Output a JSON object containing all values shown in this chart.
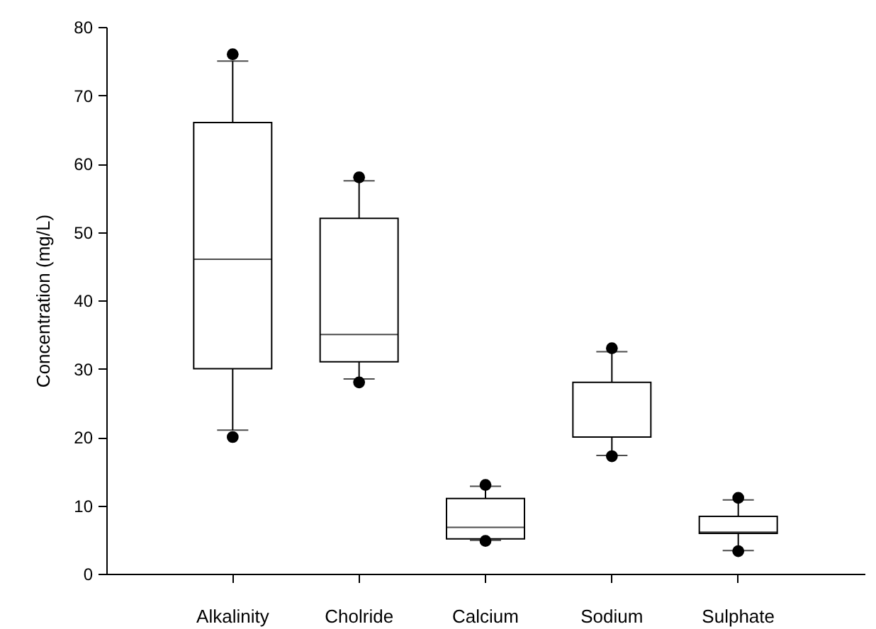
{
  "chart_data": {
    "type": "box",
    "ylabel": "Concentration (mg/L)",
    "categories": [
      "Alkalinity",
      "Cholride",
      "Calcium",
      "Sodium",
      "Sulphate"
    ],
    "boxes": [
      {
        "low": 21,
        "q1": 30,
        "median": 46,
        "q3": 66,
        "high": 75,
        "outliers": [
          20,
          76
        ]
      },
      {
        "low": 28.5,
        "q1": 31,
        "median": 35,
        "q3": 52,
        "high": 57.5,
        "outliers": [
          28,
          58
        ]
      },
      {
        "low": 4.9,
        "q1": 5.1,
        "median": 6.8,
        "q3": 11,
        "high": 12.8,
        "outliers": [
          4.8,
          13
        ]
      },
      {
        "low": 17.3,
        "q1": 20,
        "median": 20,
        "q3": 28,
        "high": 32.5,
        "outliers": [
          17.2,
          33
        ]
      },
      {
        "low": 3.4,
        "q1": 5.9,
        "median": 6.1,
        "q3": 8.4,
        "high": 10.8,
        "outliers": [
          3.3,
          11.1
        ]
      }
    ],
    "ylim": [
      0,
      80
    ],
    "yticks": [
      0,
      10,
      20,
      30,
      40,
      50,
      60,
      70,
      80
    ]
  }
}
